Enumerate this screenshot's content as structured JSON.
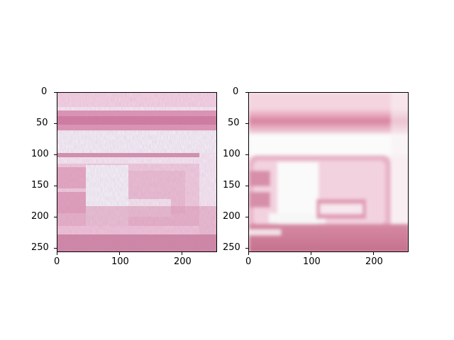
{
  "figure": {
    "panels": [
      {
        "id": "left",
        "description": "noisy low-resolution crop of pink license-plate-like region",
        "y_ticks": [
          "0",
          "50",
          "100",
          "150",
          "200",
          "250"
        ],
        "x_ticks": [
          "0",
          "100",
          "200"
        ],
        "y_tick_values": [
          0,
          50,
          100,
          150,
          200,
          250
        ],
        "x_tick_values": [
          0,
          100,
          200
        ],
        "extent": [
          0,
          256
        ]
      },
      {
        "id": "right",
        "description": "smoothed / restored version of the same pink region",
        "y_ticks": [
          "0",
          "50",
          "100",
          "150",
          "200",
          "250"
        ],
        "x_ticks": [
          "0",
          "100",
          "200"
        ],
        "y_tick_values": [
          0,
          50,
          100,
          150,
          200,
          250
        ],
        "x_tick_values": [
          0,
          100,
          200
        ],
        "extent": [
          0,
          256
        ]
      }
    ],
    "colors": {
      "pink_dark": "#c87592",
      "pink_mid": "#e0a2b8",
      "pink_light": "#f3d3df",
      "white": "#f7f9f9"
    }
  }
}
